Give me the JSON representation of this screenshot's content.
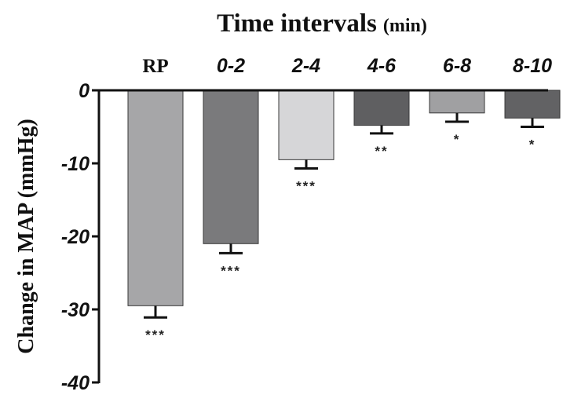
{
  "chart_data": {
    "type": "bar",
    "title": "Time intervals",
    "title_unit": "(min)",
    "ylabel": "Change in MAP (mmHg)",
    "xlabel": "",
    "categories": [
      "RP",
      "0-2",
      "2-4",
      "4-6",
      "6-8",
      "8-10"
    ],
    "values": [
      -29.5,
      -21.0,
      -9.5,
      -4.8,
      -3.1,
      -3.8
    ],
    "errors": [
      1.6,
      1.3,
      1.2,
      1.1,
      1.2,
      1.2
    ],
    "significance": [
      "***",
      "***",
      "***",
      "**",
      "*",
      "*"
    ],
    "colors": [
      "#a6a6a8",
      "#7a7a7c",
      "#d6d6d8",
      "#5f5f61",
      "#a0a0a2",
      "#626264"
    ],
    "ylim": [
      -40,
      0
    ],
    "yticks": [
      0,
      -10,
      -20,
      -30,
      -40
    ],
    "ytick_labels": [
      "0",
      "-10",
      "-20",
      "-30",
      "-40"
    ],
    "category_axis_position": "top",
    "grid": false,
    "legend": "none"
  }
}
